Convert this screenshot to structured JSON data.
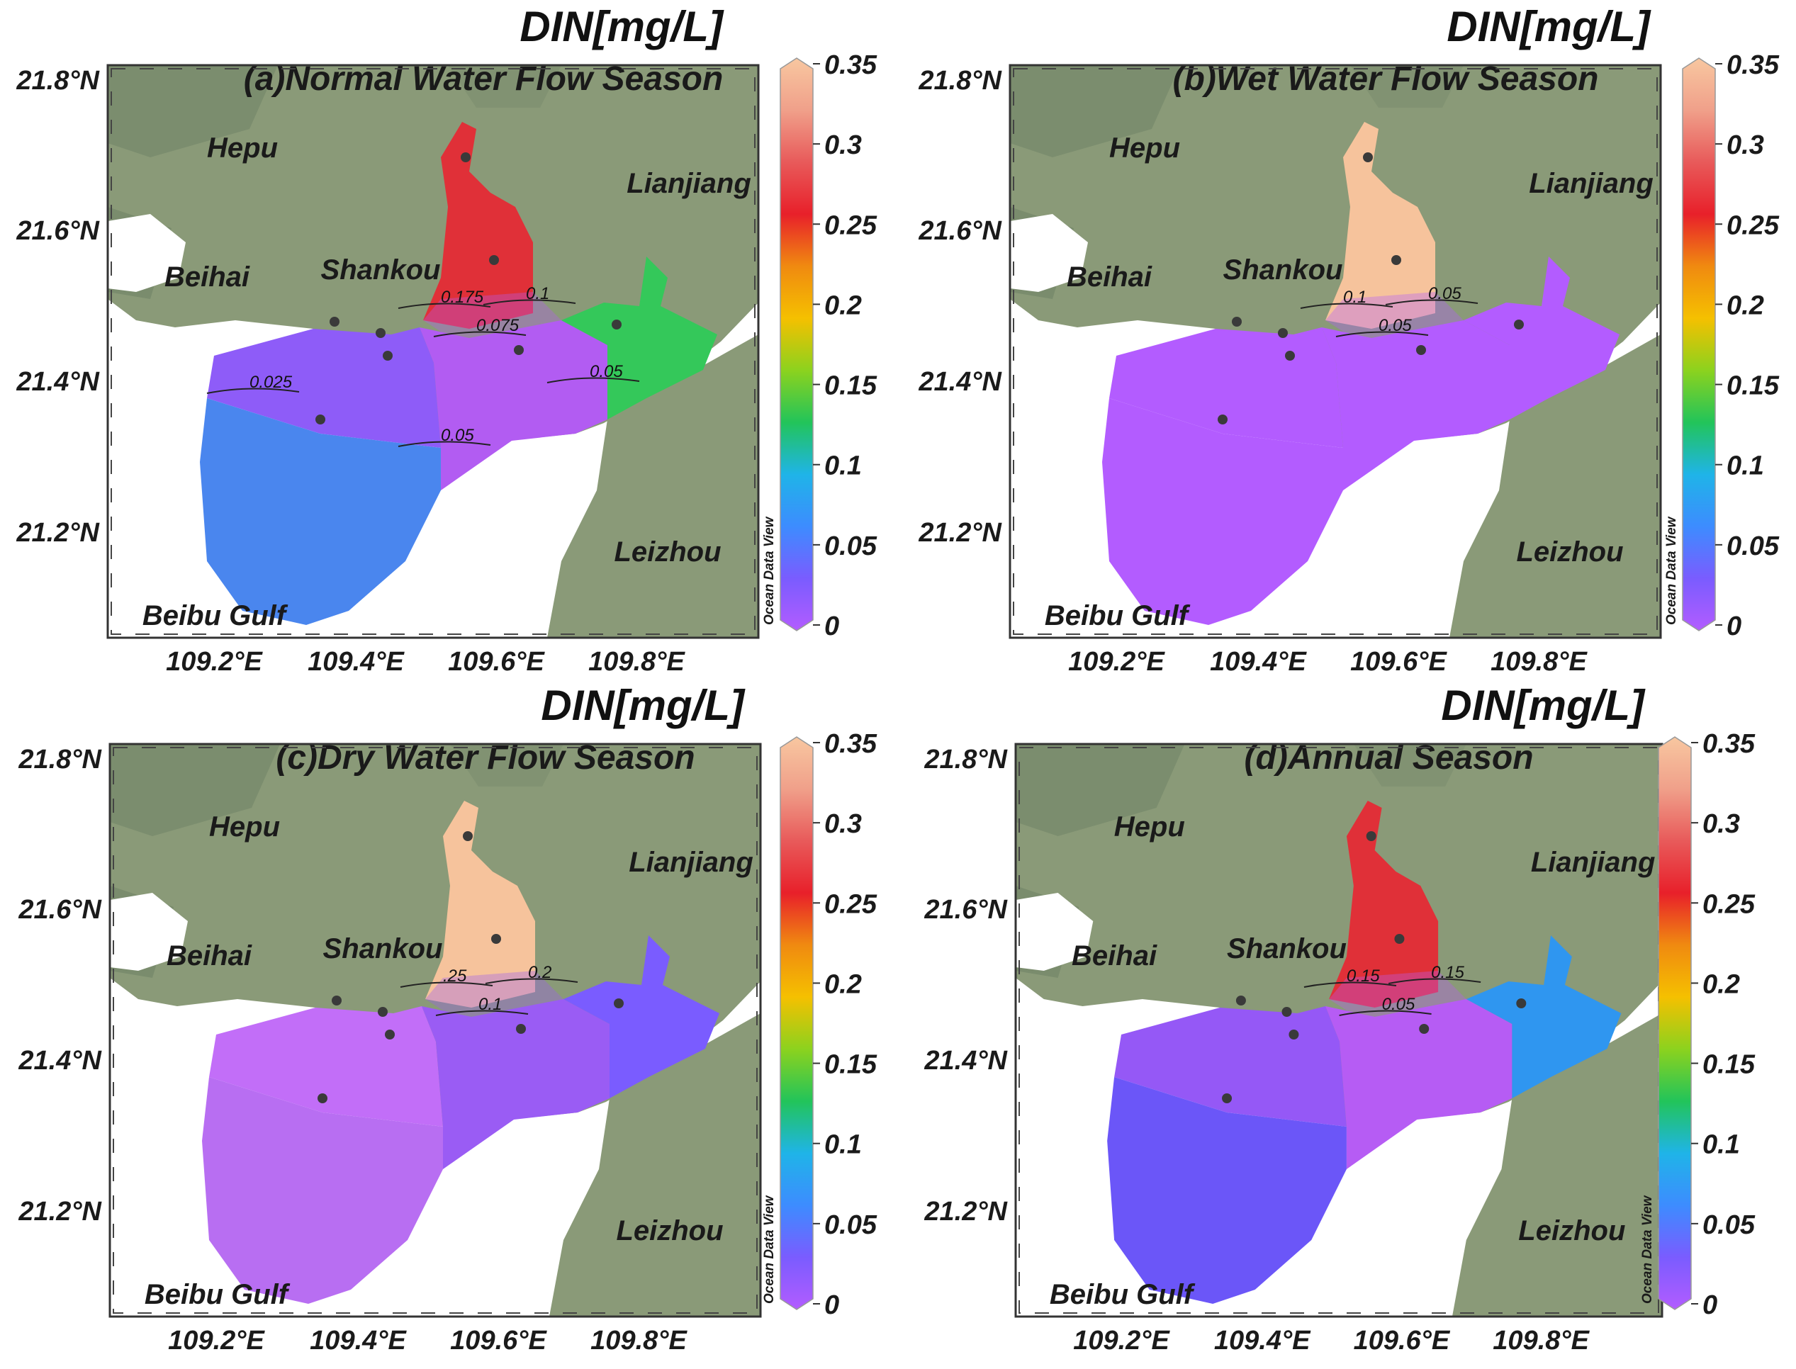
{
  "unit_title": "DIN[mg/L]",
  "watermark": "Ocean Data View",
  "lat_labels": [
    "21.8°N",
    "21.6°N",
    "21.4°N",
    "21.2°N"
  ],
  "lon_labels": [
    "109.2°E",
    "109.4°E",
    "109.6°E",
    "109.8°E"
  ],
  "colorbar": {
    "ticks": [
      "0.35",
      "0.3",
      "0.25",
      "0.2",
      "0.15",
      "0.1",
      "0.05",
      "0"
    ],
    "stops": [
      "#b35cff",
      "#7a5cff",
      "#3d8cff",
      "#1fb4e8",
      "#22c45a",
      "#8cd21e",
      "#f5c000",
      "#f08a10",
      "#e8202a",
      "#e85a5a",
      "#f0a08a",
      "#f8c7a0"
    ]
  },
  "places": [
    "Hepu",
    "Lianjiang",
    "Beihai",
    "Shankou",
    "Leizhou",
    "Beibu Gulf"
  ],
  "colors": {
    "land": "#8a9a78",
    "land_dark": "#6f8466",
    "sea": "#ffffff",
    "station": "#3a3a3a"
  },
  "panels": [
    {
      "title": "(a)Normal Water Flow Season",
      "contours": [
        "0.175",
        "0.1",
        "0.075",
        "0.025",
        "0.05",
        "0.05"
      ],
      "colors": {
        "north": "#e03038",
        "west": "#8e5cf8",
        "south": "#4a86ee",
        "center": "#b25cf2",
        "east": "#34c85a"
      }
    },
    {
      "title": "(b)Wet Water Flow Season",
      "contours": [
        "0.1",
        "0.05",
        "0.05"
      ],
      "colors": {
        "north": "#f6c39c",
        "west": "#b35cff",
        "south": "#b35cff",
        "center": "#b35cff",
        "east": "#b35cff"
      }
    },
    {
      "title": "(c)Dry Water Flow Season",
      "contours": [
        ".25",
        "0.2",
        "0.1"
      ],
      "colors": {
        "north": "#f6c39c",
        "west": "#c26ef8",
        "south": "#b86ef2",
        "center": "#9a5cf4",
        "east": "#7a5cff"
      }
    },
    {
      "title": "(d)Annual Season",
      "contours": [
        "0.15",
        "0.15",
        "0.05"
      ],
      "colors": {
        "north": "#e03038",
        "west": "#9558f6",
        "south": "#6b56f8",
        "center": "#b65cf4",
        "east": "#2f96f0"
      }
    }
  ]
}
